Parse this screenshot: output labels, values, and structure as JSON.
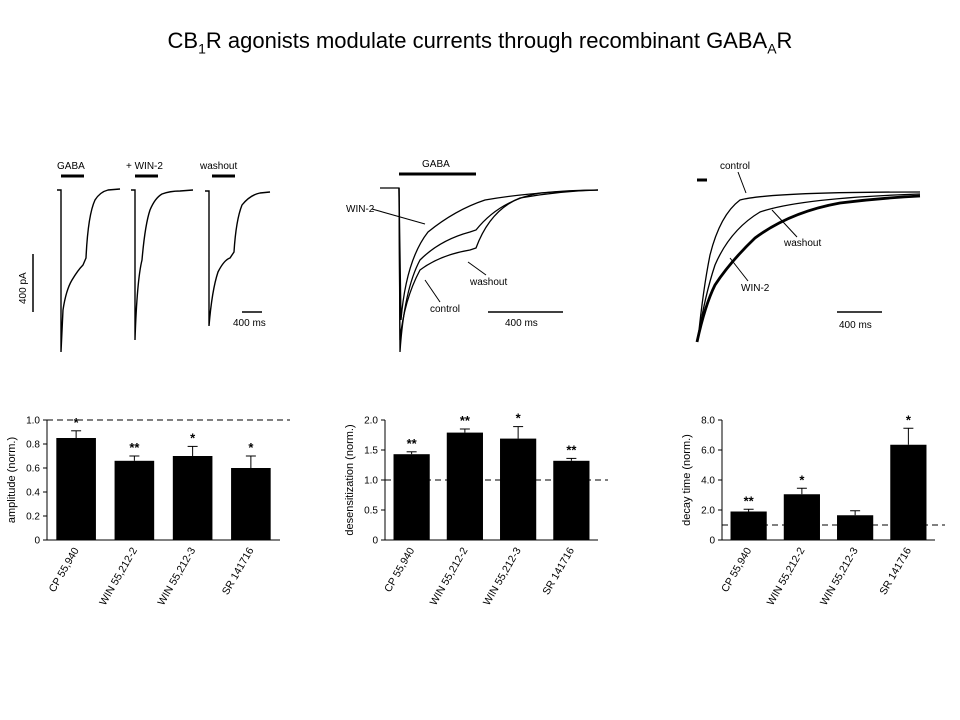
{
  "title": {
    "main": "CB",
    "sub1": "1",
    "mid": "R agonists modulate currents through recombinant GABA",
    "sub2": "A",
    "end": "R"
  },
  "traces": {
    "panel1": {
      "labels": [
        "GABA",
        "+ WIN-2",
        "washout"
      ],
      "scale_y": "400 pA",
      "scale_x": "400 ms"
    },
    "panel2": {
      "labels": [
        "GABA",
        "WIN-2",
        "washout",
        "control"
      ],
      "scale_x": "400 ms"
    },
    "panel3": {
      "labels": [
        "control",
        "washout",
        "WIN-2"
      ],
      "scale_x": "400 ms"
    }
  },
  "chart_data": [
    {
      "type": "bar",
      "categories": [
        "CP 55,940",
        "WIN 55,212-2",
        "WIN 55,212-3",
        "SR 141716"
      ],
      "values": [
        0.85,
        0.66,
        0.7,
        0.6
      ],
      "errors": [
        0.06,
        0.04,
        0.08,
        0.1
      ],
      "significance": [
        "*",
        "**",
        "*",
        "*"
      ],
      "ylabel": "amplitude (norm.)",
      "ylim": [
        0,
        1.0
      ],
      "yticks": [
        "0",
        "0.2",
        "0.4",
        "0.6",
        "0.8",
        "1.0"
      ],
      "reference_line": 1.0
    },
    {
      "type": "bar",
      "categories": [
        "CP 55,940",
        "WIN 55,212-2",
        "WIN 55,212-3",
        "SR 141716"
      ],
      "values": [
        1.43,
        1.79,
        1.69,
        1.32
      ],
      "errors": [
        0.04,
        0.06,
        0.2,
        0.04
      ],
      "significance": [
        "**",
        "**",
        "*",
        "**"
      ],
      "ylabel": "desensitization (norm.)",
      "ylim": [
        0,
        2.0
      ],
      "yticks": [
        "0",
        "0.5",
        "1.0",
        "1.5",
        "2.0"
      ],
      "reference_line": 1.0
    },
    {
      "type": "bar",
      "categories": [
        "CP 55,940",
        "WIN 55,212-2",
        "WIN 55,212-3",
        "SR 141716"
      ],
      "values": [
        1.9,
        3.05,
        1.65,
        6.35
      ],
      "errors": [
        0.15,
        0.4,
        0.3,
        1.1
      ],
      "significance": [
        "**",
        "*",
        "",
        "*"
      ],
      "ylabel": "decay time (norm.)",
      "ylim": [
        0,
        8.0
      ],
      "yticks": [
        "0",
        "2.0",
        "4.0",
        "6.0",
        "8.0"
      ],
      "reference_line": 1.0
    }
  ]
}
